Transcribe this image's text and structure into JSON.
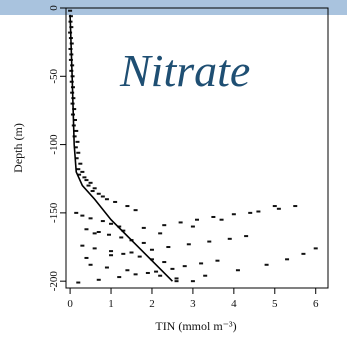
{
  "header": {
    "bar_color": "#a9c3de"
  },
  "chart_data": {
    "type": "scatter",
    "title": "Nitrate",
    "title_color": "#1f4f73",
    "xlabel": "TIN  (mmol m⁻³)",
    "ylabel": "Depth (m)",
    "xlim": [
      -0.1,
      6.3
    ],
    "ylim": [
      -205,
      0
    ],
    "x_ticks": [
      0,
      1,
      2,
      3,
      4,
      5,
      6
    ],
    "y_ticks": [
      0,
      -50,
      -100,
      -150,
      -200
    ],
    "x_tick_labels": [
      "0",
      "1",
      "2",
      "3",
      "4",
      "5",
      "6"
    ],
    "y_tick_labels": [
      "0",
      "-50",
      "-100",
      "-150",
      "-200"
    ],
    "grid": false,
    "point_color": "#111111",
    "trend_line": {
      "x": [
        0.0,
        0.05,
        0.1,
        0.15,
        0.3,
        0.6,
        1.0,
        1.5,
        2.0,
        2.5
      ],
      "y": [
        -5,
        -50,
        -100,
        -120,
        -130,
        -140,
        -155,
        -170,
        -185,
        -200
      ]
    },
    "series": [
      {
        "x": [
          0.0,
          0.02,
          0.01,
          0.03,
          0.0,
          0.02,
          0.04,
          0.01,
          0.03,
          0.02,
          0.05,
          0.03,
          0.06,
          0.04,
          0.07,
          0.05,
          0.08,
          0.06,
          0.1,
          0.07,
          0.12,
          0.09,
          0.15,
          0.11,
          0.18,
          0.14,
          0.2,
          0.16,
          0.25,
          0.2,
          0.3,
          0.22,
          0.35,
          0.4,
          0.5,
          0.45,
          0.6,
          0.55,
          0.7,
          0.8,
          0.9,
          1.1,
          1.4,
          1.6,
          0.15,
          0.3,
          0.5,
          0.8,
          1.0,
          1.2,
          0.4,
          0.7,
          0.95,
          1.25,
          1.5,
          1.8,
          0.3,
          0.6,
          1.0,
          1.3,
          1.7,
          2.0,
          2.3,
          0.5,
          0.9,
          1.4,
          1.9,
          2.2,
          2.6,
          3.0,
          0.2,
          0.7,
          1.2,
          1.6,
          2.1,
          2.5,
          2.8,
          3.2,
          3.6,
          0.4,
          1.0,
          1.5,
          2.0,
          2.4,
          2.9,
          3.4,
          3.9,
          4.3,
          0.6,
          1.3,
          1.8,
          2.3,
          2.7,
          3.1,
          3.5,
          4.0,
          4.6,
          5.1,
          5.5,
          2.6,
          3.3,
          4.1,
          4.8,
          5.3,
          5.7,
          6.0,
          1.5,
          2.2,
          3.0,
          3.7,
          4.4,
          5.0
        ],
        "y": [
          -2,
          -6,
          -10,
          -14,
          -18,
          -22,
          -26,
          -30,
          -34,
          -38,
          -42,
          -46,
          -50,
          -54,
          -58,
          -62,
          -66,
          -70,
          -74,
          -78,
          -82,
          -86,
          -90,
          -94,
          -98,
          -102,
          -106,
          -110,
          -114,
          -118,
          -120,
          -122,
          -124,
          -126,
          -128,
          -130,
          -132,
          -134,
          -136,
          -138,
          -140,
          -142,
          -145,
          -148,
          -150,
          -152,
          -154,
          -156,
          -158,
          -160,
          -162,
          -164,
          -166,
          -168,
          -170,
          -172,
          -174,
          -176,
          -178,
          -180,
          -182,
          -184,
          -186,
          -188,
          -190,
          -192,
          -194,
          -196,
          -198,
          -200,
          -201,
          -199,
          -197,
          -195,
          -193,
          -191,
          -189,
          -187,
          -185,
          -183,
          -181,
          -179,
          -177,
          -175,
          -173,
          -171,
          -169,
          -167,
          -165,
          -163,
          -161,
          -159,
          -157,
          -155,
          -153,
          -151,
          -149,
          -147,
          -145,
          -200,
          -196,
          -192,
          -188,
          -184,
          -180,
          -176,
          -170,
          -165,
          -160,
          -155,
          -150,
          -145
        ]
      }
    ]
  }
}
